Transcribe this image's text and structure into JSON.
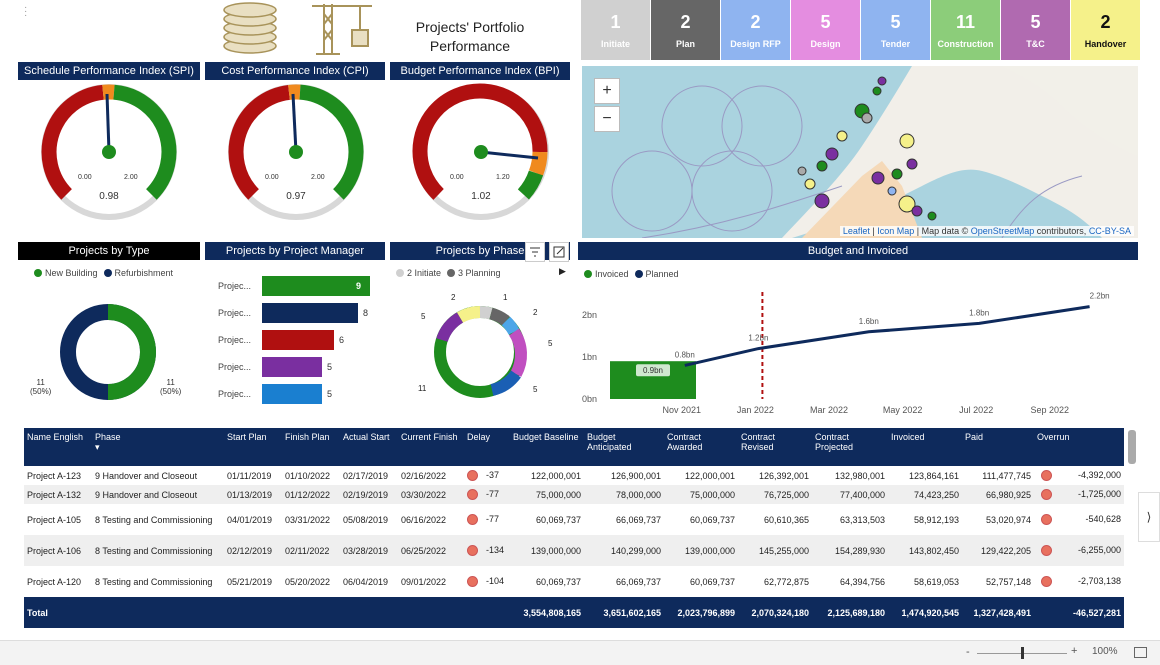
{
  "header": {
    "title_line1": "Projects' Portfolio",
    "title_line2": "Performance",
    "coins_icon": "coins-icon",
    "crane_icon": "crane-icon"
  },
  "phases": [
    {
      "count": "1",
      "label": "Initiate",
      "color": "#d0d0d0"
    },
    {
      "count": "2",
      "label": "Plan",
      "color": "#666666"
    },
    {
      "count": "2",
      "label": "Design RFP",
      "color": "#8fb4f0"
    },
    {
      "count": "5",
      "label": "Design",
      "color": "#e48de0"
    },
    {
      "count": "5",
      "label": "Tender",
      "color": "#8fb4f0"
    },
    {
      "count": "11",
      "label": "Construction",
      "color": "#8ccd7a"
    },
    {
      "count": "5",
      "label": "T&C",
      "color": "#b06ab0"
    },
    {
      "count": "2",
      "label": "Handover",
      "color": "#f5f18a"
    }
  ],
  "gauges": {
    "spi": {
      "title": "Schedule Performance Index (SPI)",
      "min": "0.00",
      "max": "2.00",
      "value": "0.98"
    },
    "cpi": {
      "title": "Cost Performance Index (CPI)",
      "min": "0.00",
      "max": "2.00",
      "value": "0.97"
    },
    "bpi": {
      "title": "Budget Performance Index (BPI)",
      "min": "0.00",
      "max": "1.20",
      "value": "1.02"
    }
  },
  "map": {
    "zoom_in": "+",
    "zoom_out": "−",
    "attrib_leaflet": "Leaflet",
    "attrib_sep1": " | ",
    "attrib_iconmap": "Icon Map",
    "attrib_text": " | Map data © ",
    "attrib_osm": "OpenStreetMap",
    "attrib_contrib": " contributors, ",
    "attrib_cc": "CC-BY-SA"
  },
  "projects_by_type": {
    "title": "Projects by Type",
    "legend": [
      {
        "label": "New Building",
        "color": "#1e8c1e"
      },
      {
        "label": "Refurbishment",
        "color": "#0e2a5c"
      }
    ],
    "left_label": "11",
    "left_pct": "(50%)",
    "right_label": "11",
    "right_pct": "(50%)"
  },
  "projects_by_pm": {
    "title": "Projects by Project Manager",
    "bars": [
      {
        "label": "Projec...",
        "value": "9",
        "color": "#1e8c1e"
      },
      {
        "label": "Projec...",
        "value": "8",
        "color": "#0e2a5c"
      },
      {
        "label": "Projec...",
        "value": "6",
        "color": "#b01010"
      },
      {
        "label": "Projec...",
        "value": "5",
        "color": "#7a2fa0"
      },
      {
        "label": "Projec...",
        "value": "5",
        "color": "#1a7fd0"
      }
    ]
  },
  "projects_by_phase": {
    "title": "Projects by Phase",
    "legend": [
      {
        "label": "2 Initiate",
        "color": "#d0d0d0"
      },
      {
        "label": "3 Planning",
        "color": "#666666"
      }
    ],
    "labels": {
      "l2": "2",
      "l1": "1",
      "r2": "2",
      "r5a": "5",
      "r5b": "5",
      "l5": "5",
      "l11": "11"
    }
  },
  "budget_chart": {
    "title": "Budget and Invoiced",
    "legend": [
      {
        "label": "Invoiced",
        "color": "#1e8c1e"
      },
      {
        "label": "Planned",
        "color": "#0e2a5c"
      }
    ],
    "y_ticks": [
      "2bn",
      "1bn",
      "0bn"
    ],
    "x_ticks": [
      "Nov 2021",
      "Jan 2022",
      "Mar 2022",
      "May 2022",
      "Jul 2022",
      "Sep 2022"
    ],
    "point_labels": [
      "0.8bn",
      "1.2bn",
      "1.6bn",
      "1.8bn",
      "2.2bn"
    ],
    "bar_label": "0.9bn"
  },
  "chart_data": {
    "type": "line",
    "title": "Budget and Invoiced",
    "series": [
      {
        "name": "Planned",
        "x": [
          "Nov 2021",
          "Jan 2022",
          "Apr 2022",
          "Jul 2022",
          "Oct 2022"
        ],
        "values": [
          0.8,
          1.2,
          1.6,
          1.8,
          2.2
        ]
      },
      {
        "name": "Invoiced",
        "x": [
          "Oct 2021"
        ],
        "values": [
          0.9
        ]
      }
    ],
    "ylim": [
      0,
      2.5
    ],
    "grid": false,
    "legend": "top-left"
  },
  "table": {
    "columns": [
      "Name English",
      "Phase",
      "Start Plan",
      "Finish Plan",
      "Actual Start",
      "Current Finish",
      "Delay",
      "Budget Baseline",
      "Budget Anticipated",
      "Contract Awarded",
      "Contract Revised",
      "Contract Projected",
      "Invoiced",
      "Paid",
      "Overrun"
    ],
    "rows": [
      {
        "name": "Project A-123",
        "phase": "9 Handover and Closeout",
        "start_plan": "01/11/2019",
        "finish_plan": "01/10/2022",
        "actual_start": "02/17/2019",
        "current_finish": "02/16/2022",
        "delay": "-37",
        "baseline": "122,000,001",
        "anticipated": "126,900,001",
        "awarded": "122,000,001",
        "revised": "126,392,001",
        "projected": "132,980,001",
        "invoiced": "123,864,161",
        "paid": "111,477,745",
        "overrun": "-4,392,000"
      },
      {
        "name": "Project A-132",
        "phase": "9 Handover and Closeout",
        "start_plan": "01/13/2019",
        "finish_plan": "01/12/2022",
        "actual_start": "02/19/2019",
        "current_finish": "03/30/2022",
        "delay": "-77",
        "baseline": "75,000,000",
        "anticipated": "78,000,000",
        "awarded": "75,000,000",
        "revised": "76,725,000",
        "projected": "77,400,000",
        "invoiced": "74,423,250",
        "paid": "66,980,925",
        "overrun": "-1,725,000"
      },
      {
        "name": "Project A-105",
        "phase": "8 Testing and Commissioning",
        "start_plan": "04/01/2019",
        "finish_plan": "03/31/2022",
        "actual_start": "05/08/2019",
        "current_finish": "06/16/2022",
        "delay": "-77",
        "baseline": "60,069,737",
        "anticipated": "66,069,737",
        "awarded": "60,069,737",
        "revised": "60,610,365",
        "projected": "63,313,503",
        "invoiced": "58,912,193",
        "paid": "53,020,974",
        "overrun": "-540,628"
      },
      {
        "name": "Project A-106",
        "phase": "8 Testing and Commissioning",
        "start_plan": "02/12/2019",
        "finish_plan": "02/11/2022",
        "actual_start": "03/28/2019",
        "current_finish": "06/25/2022",
        "delay": "-134",
        "baseline": "139,000,000",
        "anticipated": "140,299,000",
        "awarded": "139,000,000",
        "revised": "145,255,000",
        "projected": "154,289,930",
        "invoiced": "143,802,450",
        "paid": "129,422,205",
        "overrun": "-6,255,000"
      },
      {
        "name": "Project A-120",
        "phase": "8 Testing and Commissioning",
        "start_plan": "05/21/2019",
        "finish_plan": "05/20/2022",
        "actual_start": "06/04/2019",
        "current_finish": "09/01/2022",
        "delay": "-104",
        "baseline": "60,069,737",
        "anticipated": "66,069,737",
        "awarded": "60,069,737",
        "revised": "62,772,875",
        "projected": "64,394,756",
        "invoiced": "58,619,053",
        "paid": "52,757,148",
        "overrun": "-2,703,138"
      }
    ],
    "total": {
      "label": "Total",
      "baseline": "3,554,808,165",
      "anticipated": "3,651,602,165",
      "awarded": "2,023,796,899",
      "revised": "2,070,324,180",
      "projected": "2,125,689,180",
      "invoiced": "1,474,920,545",
      "paid": "1,327,428,491",
      "overrun": "-46,527,281"
    }
  },
  "statusbar": {
    "zoom_minus": "-",
    "zoom_plus": "+",
    "zoom_level": "100%",
    "zoom_fraction": 0.5
  }
}
